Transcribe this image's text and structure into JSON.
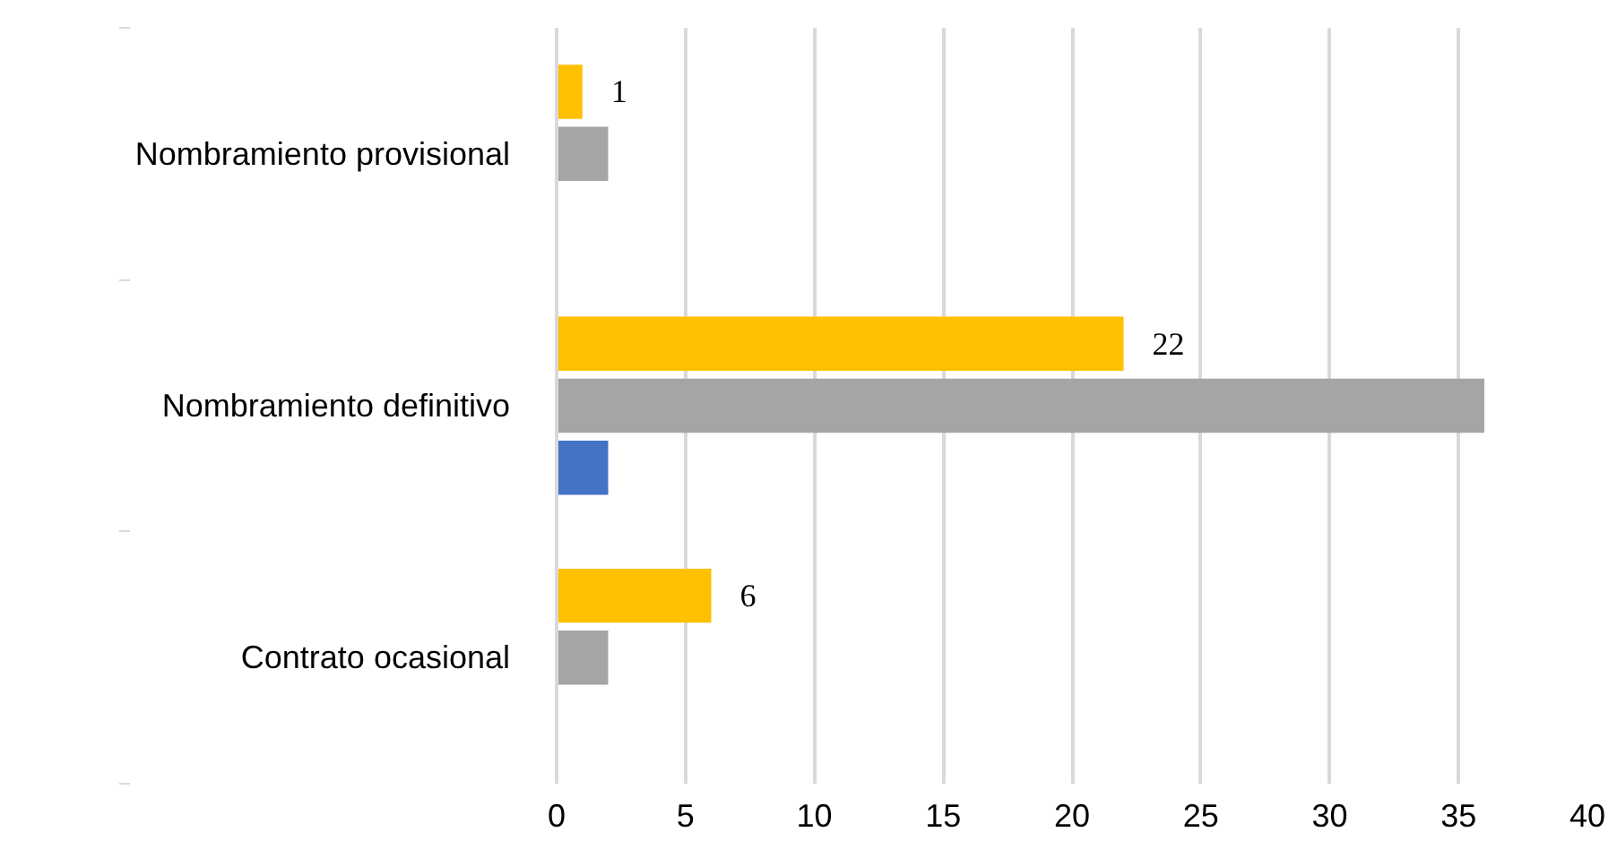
{
  "chart_data": {
    "type": "bar",
    "orientation": "horizontal",
    "categories": [
      "Nombramiento provisional",
      "Nombramiento definitivo",
      "Contrato ocasional"
    ],
    "series": [
      {
        "color": "#ffc000",
        "values": [
          1,
          22,
          6
        ],
        "value_labels": [
          "1",
          "22",
          "6"
        ]
      },
      {
        "color": "#a5a5a5",
        "values": [
          2,
          36,
          2
        ]
      },
      {
        "color": "#4472c4",
        "values": [
          null,
          2,
          null
        ]
      }
    ],
    "xlim": [
      0,
      40
    ],
    "xticks": [
      0,
      5,
      10,
      15,
      20,
      25,
      30,
      35,
      40
    ],
    "grid": "x"
  }
}
